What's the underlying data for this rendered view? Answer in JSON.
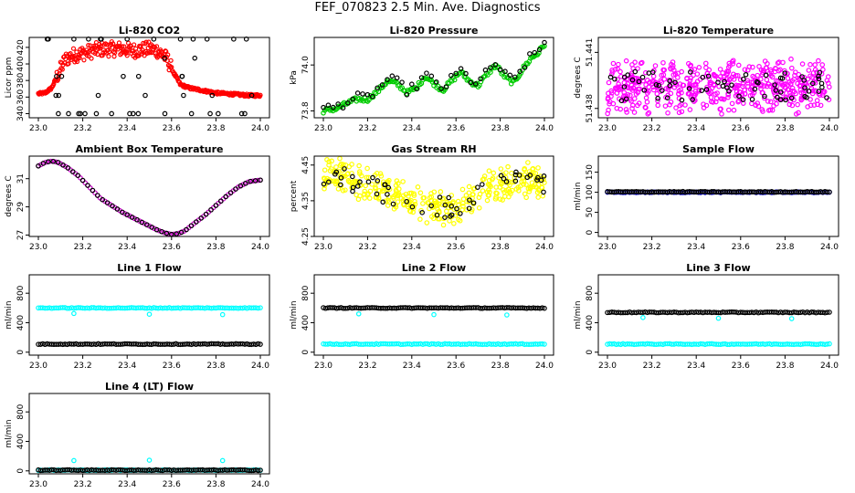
{
  "figure": {
    "title": "FEF_070823  2.5 Min. Ave. Diagnostics"
  },
  "chart_data": [
    {
      "type": "scatter",
      "title": "Li-820 CO2",
      "xlabel": "",
      "ylabel": "Licor ppm",
      "xlim": [
        23.0,
        24.0
      ],
      "xticks": [
        "23.0",
        "23.2",
        "23.4",
        "23.6",
        "23.8",
        "24.0"
      ],
      "ylim": [
        335,
        432
      ],
      "yticks": [
        340,
        360,
        380,
        400,
        420
      ],
      "series": [
        {
          "color": "#ff0000",
          "kind": "red-band",
          "x": [
            23.0,
            23.03,
            23.06,
            23.09,
            23.12,
            23.15,
            23.18,
            23.22,
            23.26,
            23.3,
            23.34,
            23.38,
            23.42,
            23.46,
            23.5,
            23.54,
            23.58,
            23.61,
            23.64,
            23.68,
            23.72,
            23.76,
            23.8,
            23.85,
            23.9,
            23.95,
            24.0
          ],
          "y": [
            364,
            365,
            371,
            388,
            405,
            410,
            412,
            414,
            417,
            418,
            418,
            418,
            416,
            417,
            418,
            416,
            406,
            389,
            375,
            371,
            369,
            367,
            365,
            364,
            363,
            362,
            362
          ]
        },
        {
          "color": "#000000",
          "kind": "black-levels",
          "levels": [
            340,
            362,
            385,
            407,
            430
          ]
        }
      ]
    },
    {
      "type": "scatter",
      "title": "Li-820 Pressure",
      "xlabel": "",
      "ylabel": "kPa",
      "xlim": [
        23.0,
        24.0
      ],
      "xticks": [
        "23.0",
        "23.2",
        "23.4",
        "23.6",
        "23.8",
        "24.0"
      ],
      "ylim": [
        73.77,
        74.12
      ],
      "yticks": [
        "73.8",
        "74.0"
      ],
      "series": [
        {
          "color": "#00cc00",
          "kind": "wave",
          "x": [
            23.0,
            23.06,
            23.1,
            23.15,
            23.2,
            23.25,
            23.29,
            23.33,
            23.38,
            23.42,
            23.46,
            23.5,
            23.54,
            23.58,
            23.62,
            23.66,
            23.7,
            23.74,
            23.78,
            23.82,
            23.86,
            23.9,
            23.94,
            23.97,
            24.0
          ],
          "y": [
            73.8,
            73.81,
            73.83,
            73.85,
            73.85,
            73.89,
            73.93,
            73.92,
            73.88,
            73.9,
            73.95,
            73.92,
            73.89,
            73.93,
            73.97,
            73.93,
            73.91,
            73.96,
            74.0,
            73.95,
            73.92,
            73.98,
            74.03,
            74.05,
            74.09
          ]
        }
      ]
    },
    {
      "type": "scatter",
      "title": "Li-820 Temperature",
      "xlabel": "",
      "ylabel": "degrees C",
      "xlim": [
        23.0,
        24.0
      ],
      "xticks": [
        "23.0",
        "23.2",
        "23.4",
        "23.6",
        "23.8",
        "24.0"
      ],
      "ylim": [
        51.4375,
        51.4418
      ],
      "yticks": [
        "51.438",
        "51.441"
      ],
      "series": [
        {
          "color": "#ff00ff",
          "kind": "noise",
          "y_center": 51.4392,
          "y_spread": 0.0016,
          "y_max": 51.4415,
          "y_min": 51.4377
        }
      ]
    },
    {
      "type": "scatter",
      "title": "Ambient Box Temperature",
      "xlabel": "",
      "ylabel": "degrees C",
      "xlim": [
        23.0,
        24.0
      ],
      "xticks": [
        "23.0",
        "23.2",
        "23.4",
        "23.6",
        "23.8",
        "24.0"
      ],
      "ylim": [
        26.9,
        32.6
      ],
      "yticks": [
        27,
        29,
        31
      ],
      "series": [
        {
          "color": "#cc00cc",
          "kind": "curve",
          "x": [
            23.0,
            23.03,
            23.06,
            23.09,
            23.13,
            23.18,
            23.23,
            23.28,
            23.33,
            23.38,
            23.43,
            23.48,
            23.53,
            23.57,
            23.6,
            23.63,
            23.66,
            23.7,
            23.75,
            23.8,
            23.85,
            23.9,
            23.95,
            24.0
          ],
          "y": [
            31.9,
            32.15,
            32.25,
            32.15,
            31.8,
            31.2,
            30.4,
            29.6,
            29.1,
            28.6,
            28.2,
            27.8,
            27.4,
            27.15,
            27.05,
            27.1,
            27.3,
            27.8,
            28.4,
            29.1,
            29.8,
            30.4,
            30.8,
            30.9
          ]
        }
      ]
    },
    {
      "type": "scatter",
      "title": "Gas Stream RH",
      "xlabel": "",
      "ylabel": "percent",
      "xlim": [
        23.0,
        24.0
      ],
      "xticks": [
        "23.0",
        "23.2",
        "23.4",
        "23.6",
        "23.8",
        "24.0"
      ],
      "ylim": [
        4.25,
        4.475
      ],
      "yticks": [
        "4.25",
        "4.35",
        "4.45"
      ],
      "series": [
        {
          "color": "#ffff00",
          "kind": "noisy-curve",
          "x": [
            23.0,
            23.05,
            23.1,
            23.15,
            23.2,
            23.25,
            23.3,
            23.35,
            23.4,
            23.45,
            23.5,
            23.55,
            23.6,
            23.65,
            23.7,
            23.75,
            23.8,
            23.85,
            23.9,
            23.95,
            24.0
          ],
          "y": [
            4.41,
            4.42,
            4.41,
            4.4,
            4.39,
            4.38,
            4.37,
            4.36,
            4.35,
            4.34,
            4.33,
            4.33,
            4.33,
            4.34,
            4.36,
            4.38,
            4.39,
            4.4,
            4.41,
            4.41,
            4.4
          ]
        }
      ]
    },
    {
      "type": "scatter",
      "title": "Sample Flow",
      "xlabel": "",
      "ylabel": "ml/min",
      "xlim": [
        23.0,
        24.0
      ],
      "xticks": [
        "23.0",
        "23.2",
        "23.4",
        "23.6",
        "23.8",
        "24.0"
      ],
      "ylim": [
        -10,
        190
      ],
      "yticks": [
        0,
        50,
        100,
        150
      ],
      "series": [
        {
          "color": "#0000cc",
          "kind": "flat",
          "y": 100
        },
        {
          "color": "#000000",
          "kind": "flat",
          "y": 101
        }
      ]
    },
    {
      "type": "scatter",
      "title": "Line 1 Flow",
      "xlabel": "",
      "ylabel": "ml/min",
      "xlim": [
        23.0,
        24.0
      ],
      "xticks": [
        "23.0",
        "23.2",
        "23.4",
        "23.6",
        "23.8",
        "24.0"
      ],
      "ylim": [
        -40,
        1050
      ],
      "yticks": [
        0,
        400,
        800
      ],
      "series": [
        {
          "color": "#00ffff",
          "kind": "flat",
          "y": 600,
          "dips": [
            [
              23.16,
              525
            ],
            [
              23.5,
              515
            ],
            [
              23.83,
              510
            ]
          ]
        },
        {
          "color": "#000000",
          "kind": "flat",
          "y": 110
        }
      ]
    },
    {
      "type": "scatter",
      "title": "Line 2 Flow",
      "xlabel": "",
      "ylabel": "ml/min",
      "xlim": [
        23.0,
        24.0
      ],
      "xticks": [
        "23.0",
        "23.2",
        "23.4",
        "23.6",
        "23.8",
        "24.0"
      ],
      "ylim": [
        -40,
        1050
      ],
      "yticks": [
        0,
        400,
        800
      ],
      "series": [
        {
          "color": "#000000",
          "kind": "flat",
          "y": 600
        },
        {
          "color": "#00ffff",
          "kind": "flat",
          "y": 110,
          "dips": [
            [
              23.16,
              520
            ],
            [
              23.5,
              510
            ],
            [
              23.83,
              505
            ]
          ]
        }
      ]
    },
    {
      "type": "scatter",
      "title": "Line 3 Flow",
      "xlabel": "",
      "ylabel": "ml/min",
      "xlim": [
        23.0,
        24.0
      ],
      "xticks": [
        "23.0",
        "23.2",
        "23.4",
        "23.6",
        "23.8",
        "24.0"
      ],
      "ylim": [
        -40,
        1050
      ],
      "yticks": [
        0,
        400,
        800
      ],
      "series": [
        {
          "color": "#000000",
          "kind": "flat",
          "y": 540
        },
        {
          "color": "#00ffff",
          "kind": "flat",
          "y": 110,
          "dips": [
            [
              23.16,
              470
            ],
            [
              23.5,
              460
            ],
            [
              23.83,
              455
            ]
          ]
        }
      ]
    },
    {
      "type": "scatter",
      "title": "Line 4 (LT) Flow",
      "xlabel": "",
      "ylabel": "ml/min",
      "xlim": [
        23.0,
        24.0
      ],
      "xticks": [
        "23.0",
        "23.2",
        "23.4",
        "23.6",
        "23.8",
        "24.0"
      ],
      "ylim": [
        -40,
        1050
      ],
      "yticks": [
        0,
        400,
        800
      ],
      "series": [
        {
          "color": "#00ffff",
          "kind": "flat",
          "y": 10,
          "dips": [
            [
              23.16,
              140
            ],
            [
              23.5,
              145
            ],
            [
              23.83,
              140
            ]
          ]
        },
        {
          "color": "#000000",
          "kind": "flat",
          "y": 10
        }
      ]
    }
  ]
}
